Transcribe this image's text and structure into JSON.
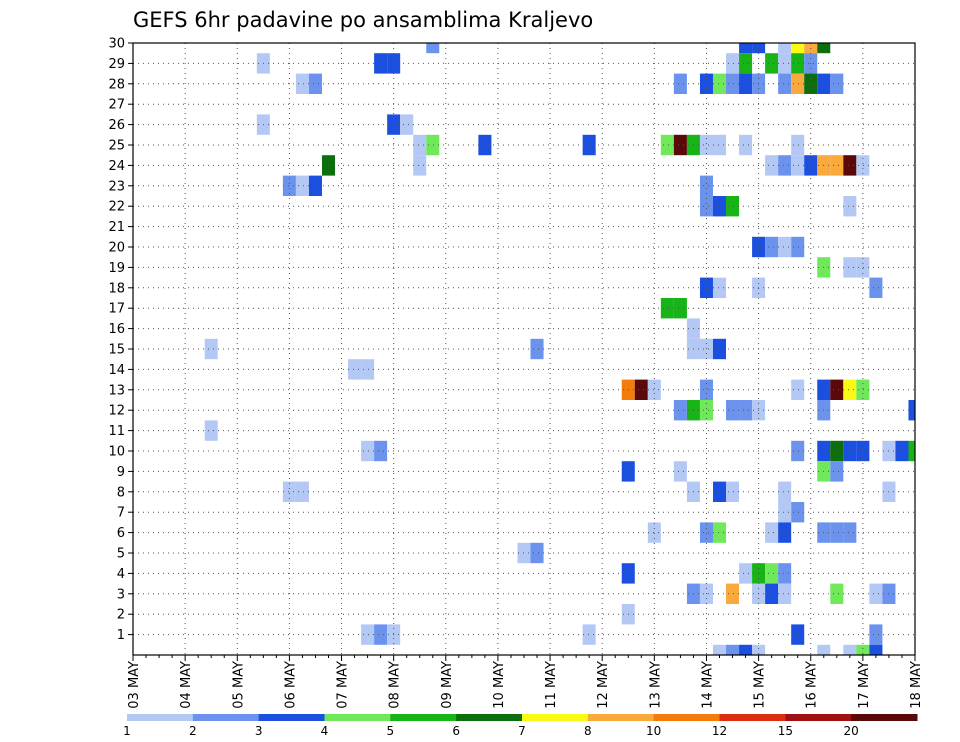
{
  "chart_data": {
    "type": "heatmap",
    "title": "GEFS 6hr padavine po ansamblima Kraljevo",
    "xlabel": "",
    "ylabel": "",
    "x_tick_labels": [
      "03 MAY",
      "04 MAY",
      "05 MAY",
      "06 MAY",
      "07 MAY",
      "08 MAY",
      "09 MAY",
      "10 MAY",
      "11 MAY",
      "12 MAY",
      "13 MAY",
      "14 MAY",
      "15 MAY",
      "16 MAY",
      "17 MAY",
      "18 MAY"
    ],
    "y_tick_labels": [
      "1",
      "2",
      "3",
      "4",
      "5",
      "6",
      "7",
      "8",
      "9",
      "10",
      "11",
      "12",
      "13",
      "14",
      "15",
      "16",
      "17",
      "18",
      "19",
      "20",
      "21",
      "22",
      "23",
      "24",
      "25",
      "26",
      "27",
      "28",
      "29",
      "30"
    ],
    "x_range_steps": [
      0,
      60
    ],
    "y_range_members": [
      0,
      30
    ],
    "grid": true,
    "legend_placement": "bottom",
    "legend_labels": [
      "1",
      "2",
      "3",
      "4",
      "5",
      "6",
      "7",
      "8",
      "10",
      "12",
      "15",
      "20"
    ],
    "colors": [
      "#b4c8f5",
      "#6b93ee",
      "#1b4fe0",
      "#6fe85a",
      "#17b317",
      "#0d6e0d",
      "#fafa14",
      "#faaa3c",
      "#f27d0d",
      "#dd2d10",
      "#a01010",
      "#5a0808"
    ],
    "cells": [
      [
        23,
        30,
        1
      ],
      [
        47,
        30,
        2
      ],
      [
        48,
        30,
        2
      ],
      [
        50,
        30,
        0
      ],
      [
        51,
        30,
        6
      ],
      [
        52,
        30,
        7
      ],
      [
        53,
        30,
        5
      ],
      [
        10,
        29,
        0
      ],
      [
        19,
        29,
        2
      ],
      [
        20,
        29,
        2
      ],
      [
        46,
        29,
        0
      ],
      [
        47,
        29,
        4
      ],
      [
        49,
        29,
        4
      ],
      [
        50,
        29,
        0
      ],
      [
        51,
        29,
        4
      ],
      [
        52,
        29,
        1
      ],
      [
        13,
        28,
        0
      ],
      [
        14,
        28,
        1
      ],
      [
        42,
        28,
        1
      ],
      [
        44,
        28,
        2
      ],
      [
        45,
        28,
        3
      ],
      [
        46,
        28,
        1
      ],
      [
        47,
        28,
        2
      ],
      [
        48,
        28,
        1
      ],
      [
        50,
        28,
        1
      ],
      [
        51,
        28,
        7
      ],
      [
        52,
        28,
        5
      ],
      [
        53,
        28,
        2
      ],
      [
        54,
        28,
        1
      ],
      [
        10,
        26,
        0
      ],
      [
        20,
        26,
        2
      ],
      [
        21,
        26,
        0
      ],
      [
        22,
        25,
        0
      ],
      [
        23,
        25,
        3
      ],
      [
        27,
        25,
        2
      ],
      [
        35,
        25,
        2
      ],
      [
        41,
        25,
        3
      ],
      [
        42,
        25,
        11
      ],
      [
        43,
        25,
        4
      ],
      [
        44,
        25,
        0
      ],
      [
        45,
        25,
        0
      ],
      [
        47,
        25,
        0
      ],
      [
        51,
        25,
        0
      ],
      [
        15,
        24,
        5
      ],
      [
        22,
        24,
        0
      ],
      [
        49,
        24,
        0
      ],
      [
        50,
        24,
        1
      ],
      [
        51,
        24,
        0
      ],
      [
        52,
        24,
        2
      ],
      [
        53,
        24,
        7
      ],
      [
        54,
        24,
        7
      ],
      [
        55,
        24,
        11
      ],
      [
        56,
        24,
        0
      ],
      [
        12,
        23,
        1
      ],
      [
        13,
        23,
        0
      ],
      [
        14,
        23,
        2
      ],
      [
        44,
        23,
        1
      ],
      [
        44,
        22,
        1
      ],
      [
        45,
        22,
        2
      ],
      [
        46,
        22,
        4
      ],
      [
        55,
        22,
        0
      ],
      [
        48,
        20,
        2
      ],
      [
        49,
        20,
        1
      ],
      [
        50,
        20,
        0
      ],
      [
        51,
        20,
        1
      ],
      [
        53,
        19,
        3
      ],
      [
        55,
        19,
        0
      ],
      [
        56,
        19,
        0
      ],
      [
        44,
        18,
        2
      ],
      [
        45,
        18,
        0
      ],
      [
        48,
        18,
        0
      ],
      [
        57,
        18,
        1
      ],
      [
        41,
        17,
        4
      ],
      [
        42,
        17,
        4
      ],
      [
        43,
        16,
        0
      ],
      [
        6,
        15,
        0
      ],
      [
        31,
        15,
        1
      ],
      [
        43,
        15,
        0
      ],
      [
        44,
        15,
        0
      ],
      [
        45,
        15,
        2
      ],
      [
        17,
        14,
        0
      ],
      [
        18,
        14,
        0
      ],
      [
        38,
        13,
        8
      ],
      [
        39,
        13,
        11
      ],
      [
        40,
        13,
        0
      ],
      [
        44,
        13,
        1
      ],
      [
        51,
        13,
        0
      ],
      [
        53,
        13,
        2
      ],
      [
        54,
        13,
        11
      ],
      [
        55,
        13,
        6
      ],
      [
        56,
        13,
        3
      ],
      [
        42,
        12,
        1
      ],
      [
        43,
        12,
        4
      ],
      [
        44,
        12,
        3
      ],
      [
        46,
        12,
        1
      ],
      [
        47,
        12,
        1
      ],
      [
        48,
        12,
        0
      ],
      [
        53,
        12,
        1
      ],
      [
        60,
        12,
        2
      ],
      [
        6,
        11,
        0
      ],
      [
        18,
        10,
        0
      ],
      [
        19,
        10,
        1
      ],
      [
        51,
        10,
        1
      ],
      [
        53,
        10,
        2
      ],
      [
        54,
        10,
        5
      ],
      [
        55,
        10,
        2
      ],
      [
        56,
        10,
        2
      ],
      [
        58,
        10,
        0
      ],
      [
        59,
        10,
        2
      ],
      [
        60,
        10,
        4
      ],
      [
        38,
        9,
        2
      ],
      [
        42,
        9,
        0
      ],
      [
        53,
        9,
        3
      ],
      [
        54,
        9,
        1
      ],
      [
        12,
        8,
        0
      ],
      [
        13,
        8,
        0
      ],
      [
        43,
        8,
        0
      ],
      [
        45,
        8,
        2
      ],
      [
        46,
        8,
        0
      ],
      [
        50,
        8,
        0
      ],
      [
        58,
        8,
        0
      ],
      [
        50,
        7,
        0
      ],
      [
        51,
        7,
        1
      ],
      [
        40,
        6,
        0
      ],
      [
        44,
        6,
        1
      ],
      [
        45,
        6,
        3
      ],
      [
        49,
        6,
        0
      ],
      [
        50,
        6,
        2
      ],
      [
        53,
        6,
        1
      ],
      [
        54,
        6,
        1
      ],
      [
        55,
        6,
        1
      ],
      [
        30,
        5,
        0
      ],
      [
        31,
        5,
        1
      ],
      [
        38,
        4,
        2
      ],
      [
        47,
        4,
        0
      ],
      [
        48,
        4,
        4
      ],
      [
        49,
        4,
        3
      ],
      [
        50,
        4,
        1
      ],
      [
        43,
        3,
        1
      ],
      [
        44,
        3,
        0
      ],
      [
        46,
        3,
        7
      ],
      [
        48,
        3,
        0
      ],
      [
        49,
        3,
        2
      ],
      [
        50,
        3,
        0
      ],
      [
        54,
        3,
        3
      ],
      [
        57,
        3,
        0
      ],
      [
        58,
        3,
        1
      ],
      [
        38,
        2,
        0
      ],
      [
        18,
        1,
        0
      ],
      [
        19,
        1,
        1
      ],
      [
        20,
        1,
        0
      ],
      [
        35,
        1,
        0
      ],
      [
        51,
        1,
        2
      ],
      [
        57,
        1,
        1
      ],
      [
        45,
        0,
        0
      ],
      [
        46,
        0,
        1
      ],
      [
        47,
        0,
        2
      ],
      [
        48,
        0,
        0
      ],
      [
        53,
        0,
        0
      ],
      [
        55,
        0,
        0
      ],
      [
        56,
        0,
        3
      ],
      [
        57,
        0,
        2
      ]
    ]
  }
}
